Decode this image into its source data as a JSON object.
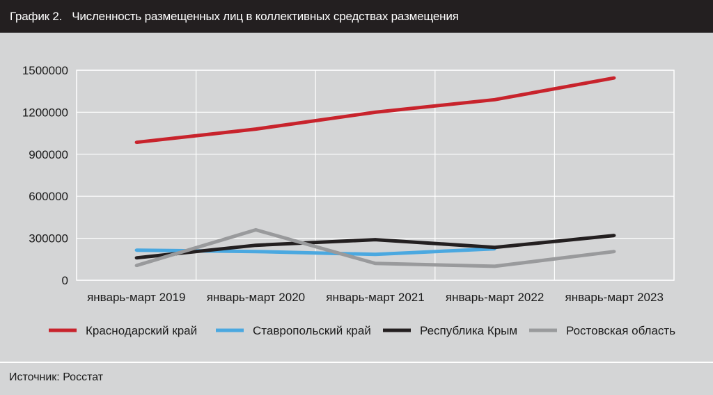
{
  "header": {
    "number": "График 2.",
    "title": "Численность размещенных лиц в коллективных средствах размещения"
  },
  "source": "Источник: Росстат",
  "chart_data": {
    "type": "line",
    "categories": [
      "январь-март 2019",
      "январь-март 2020",
      "январь-март 2021",
      "январь-март 2022",
      "январь-март 2023"
    ],
    "ylim": [
      0,
      1500000
    ],
    "yticks": [
      "0",
      "300000",
      "600000",
      "900000",
      "1200000",
      "1500000"
    ],
    "grid": true,
    "legend_position": "bottom",
    "series": [
      {
        "name": "Краснодарский край",
        "color": "#c8232c",
        "values": [
          985000,
          1080000,
          1200000,
          1290000,
          1445000
        ]
      },
      {
        "name": "Ставропольский край",
        "color": "#4aa8e0",
        "values": [
          215000,
          205000,
          185000,
          225000,
          null
        ]
      },
      {
        "name": "Республика Крым",
        "color": "#231f20",
        "values": [
          160000,
          250000,
          290000,
          235000,
          320000
        ]
      },
      {
        "name": "Ростовская область",
        "color": "#999a9c",
        "values": [
          105000,
          360000,
          120000,
          100000,
          205000
        ]
      }
    ]
  }
}
